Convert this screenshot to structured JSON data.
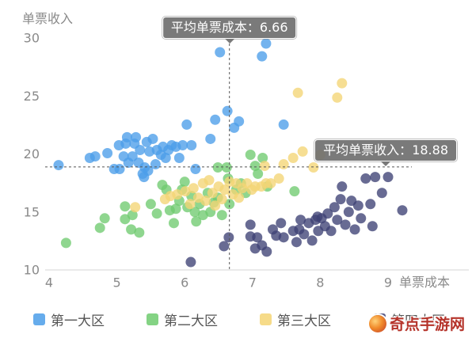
{
  "chart_data": {
    "type": "scatter",
    "xlabel": "单票成本",
    "ylabel": "单票收入",
    "x_ticks": [
      4,
      5,
      6,
      7,
      8,
      9
    ],
    "y_ticks": [
      10,
      15,
      20,
      25,
      30
    ],
    "xlim": [
      4,
      9
    ],
    "ylim": [
      10,
      30
    ],
    "grid": false,
    "legend_position": "bottom",
    "annotations": {
      "mean_x": {
        "label": "平均单票成本：",
        "value": 6.66
      },
      "mean_y": {
        "label": "平均单票收入：",
        "value": 18.88
      }
    },
    "series": [
      {
        "name": "第一大区",
        "color": "#4b9ee9",
        "points": [
          [
            4.14,
            19.04
          ],
          [
            4.6,
            19.66
          ],
          [
            4.68,
            19.79
          ],
          [
            4.86,
            20.07
          ],
          [
            4.96,
            18.7
          ],
          [
            5.04,
            18.7
          ],
          [
            5.03,
            20.75
          ],
          [
            5.1,
            19.79
          ],
          [
            5.13,
            20.89
          ],
          [
            5.15,
            21.44
          ],
          [
            5.17,
            19.25
          ],
          [
            5.23,
            19.79
          ],
          [
            5.26,
            20.89
          ],
          [
            5.28,
            21.44
          ],
          [
            5.32,
            19.25
          ],
          [
            5.34,
            20.34
          ],
          [
            5.38,
            18.29
          ],
          [
            5.4,
            18.01
          ],
          [
            5.41,
            18.84
          ],
          [
            5.44,
            21.03
          ],
          [
            5.46,
            18.56
          ],
          [
            5.48,
            20.21
          ],
          [
            5.53,
            21.3
          ],
          [
            5.57,
            19.11
          ],
          [
            5.59,
            20.34
          ],
          [
            5.65,
            19.93
          ],
          [
            5.68,
            20.62
          ],
          [
            5.72,
            19.66
          ],
          [
            5.76,
            20.34
          ],
          [
            5.81,
            20.75
          ],
          [
            5.87,
            20.62
          ],
          [
            5.92,
            19.66
          ],
          [
            5.97,
            20.75
          ],
          [
            6.03,
            22.53
          ],
          [
            6.1,
            20.75
          ],
          [
            6.16,
            18.7
          ],
          [
            6.38,
            21.3
          ],
          [
            6.45,
            22.95
          ],
          [
            6.52,
            28.77
          ],
          [
            6.63,
            23.7
          ],
          [
            6.73,
            22.26
          ],
          [
            6.8,
            22.81
          ],
          [
            7.14,
            28.42
          ],
          [
            7.2,
            29.52
          ],
          [
            7.46,
            22.53
          ]
        ]
      },
      {
        "name": "第二大区",
        "color": "#6fcb6f",
        "points": [
          [
            4.25,
            12.33
          ],
          [
            4.75,
            13.63
          ],
          [
            4.82,
            14.45
          ],
          [
            5.12,
            15.48
          ],
          [
            5.12,
            14.38
          ],
          [
            5.21,
            13.49
          ],
          [
            5.23,
            14.73
          ],
          [
            5.33,
            13.22
          ],
          [
            5.5,
            15.68
          ],
          [
            5.59,
            14.86
          ],
          [
            5.67,
            17.33
          ],
          [
            5.73,
            16.92
          ],
          [
            5.78,
            15.14
          ],
          [
            5.84,
            14.04
          ],
          [
            5.87,
            15.27
          ],
          [
            5.92,
            15.96
          ],
          [
            5.96,
            16.92
          ],
          [
            6.0,
            17.6
          ],
          [
            6.04,
            15.41
          ],
          [
            6.1,
            16.37
          ],
          [
            6.15,
            15.0
          ],
          [
            6.17,
            14.18
          ],
          [
            6.22,
            15.68
          ],
          [
            6.27,
            14.73
          ],
          [
            6.34,
            16.64
          ],
          [
            6.38,
            15.0
          ],
          [
            6.43,
            15.82
          ],
          [
            6.49,
            18.84
          ],
          [
            6.49,
            16.23
          ],
          [
            6.55,
            14.73
          ],
          [
            6.62,
            18.84
          ],
          [
            6.64,
            17.88
          ],
          [
            6.66,
            15.68
          ],
          [
            6.76,
            16.92
          ],
          [
            6.83,
            17.47
          ],
          [
            6.9,
            16.64
          ],
          [
            6.97,
            19.93
          ],
          [
            7.04,
            18.97
          ],
          [
            7.08,
            18.29
          ],
          [
            7.15,
            19.66
          ],
          [
            7.22,
            17.19
          ],
          [
            7.62,
            16.78
          ]
        ]
      },
      {
        "name": "第三大区",
        "color": "#f4d574",
        "points": [
          [
            5.27,
            15.41
          ],
          [
            5.71,
            16.1
          ],
          [
            5.79,
            16.37
          ],
          [
            5.89,
            16.51
          ],
          [
            6.01,
            16.78
          ],
          [
            6.08,
            15.68
          ],
          [
            6.13,
            17.05
          ],
          [
            6.2,
            16.23
          ],
          [
            6.27,
            17.47
          ],
          [
            6.31,
            15.96
          ],
          [
            6.36,
            17.74
          ],
          [
            6.41,
            16.64
          ],
          [
            6.45,
            15.55
          ],
          [
            6.5,
            17.19
          ],
          [
            6.55,
            16.1
          ],
          [
            6.59,
            16.92
          ],
          [
            6.66,
            17.6
          ],
          [
            6.71,
            16.51
          ],
          [
            6.76,
            17.47
          ],
          [
            6.8,
            16.23
          ],
          [
            6.85,
            17.05
          ],
          [
            6.92,
            17.47
          ],
          [
            6.99,
            16.92
          ],
          [
            7.04,
            17.19
          ],
          [
            7.13,
            17.19
          ],
          [
            7.18,
            18.97
          ],
          [
            7.2,
            17.47
          ],
          [
            7.27,
            17.47
          ],
          [
            7.39,
            17.88
          ],
          [
            7.46,
            19.11
          ],
          [
            7.6,
            19.66
          ],
          [
            7.67,
            25.27
          ],
          [
            7.74,
            20.21
          ],
          [
            7.9,
            18.84
          ],
          [
            8.0,
            19.93
          ],
          [
            8.25,
            24.86
          ],
          [
            8.32,
            26.1
          ]
        ]
      },
      {
        "name": "第四大区",
        "color": "#3e4175",
        "points": [
          [
            6.09,
            10.68
          ],
          [
            6.58,
            12.05
          ],
          [
            6.65,
            12.81
          ],
          [
            6.97,
            13.9
          ],
          [
            6.97,
            12.88
          ],
          [
            7.04,
            11.85
          ],
          [
            7.07,
            12.81
          ],
          [
            7.14,
            12.12
          ],
          [
            7.21,
            11.58
          ],
          [
            7.3,
            13.49
          ],
          [
            7.35,
            12.95
          ],
          [
            7.42,
            14.04
          ],
          [
            7.46,
            12.81
          ],
          [
            7.6,
            13.36
          ],
          [
            7.65,
            12.4
          ],
          [
            7.69,
            13.49
          ],
          [
            7.71,
            14.32
          ],
          [
            7.76,
            13.08
          ],
          [
            7.83,
            14.04
          ],
          [
            7.88,
            12.53
          ],
          [
            7.93,
            14.32
          ],
          [
            7.96,
            14.59
          ],
          [
            7.97,
            13.36
          ],
          [
            8.02,
            14.45
          ],
          [
            8.07,
            13.77
          ],
          [
            8.11,
            14.86
          ],
          [
            8.16,
            13.36
          ],
          [
            8.21,
            15.41
          ],
          [
            8.25,
            14.32
          ],
          [
            8.3,
            16.1
          ],
          [
            8.32,
            17.19
          ],
          [
            8.37,
            13.9
          ],
          [
            8.42,
            15.0
          ],
          [
            8.46,
            15.96
          ],
          [
            8.51,
            13.49
          ],
          [
            8.56,
            15.55
          ],
          [
            8.6,
            14.45
          ],
          [
            8.67,
            17.88
          ],
          [
            8.74,
            15.68
          ],
          [
            8.77,
            13.77
          ],
          [
            8.81,
            18.01
          ],
          [
            8.91,
            16.64
          ],
          [
            9.0,
            18.01
          ],
          [
            9.21,
            15.14
          ]
        ]
      }
    ]
  },
  "watermark": {
    "text": "奇点手游网",
    "logo_icon": "swirl-logo-icon"
  }
}
